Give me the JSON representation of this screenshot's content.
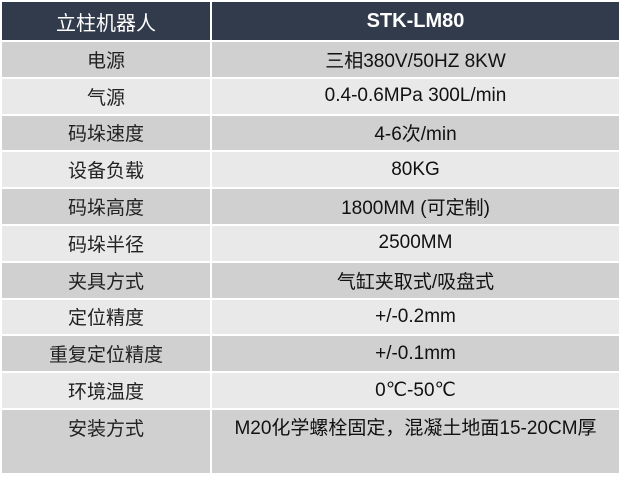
{
  "header": {
    "label": "立柱机器人",
    "value": "STK-LM80"
  },
  "rows": [
    {
      "label": "电源",
      "value": "三相380V/50HZ 8KW"
    },
    {
      "label": "气源",
      "value": "0.4-0.6MPa 300L/min"
    },
    {
      "label": "码垛速度",
      "value": "4-6次/min"
    },
    {
      "label": "设备负载",
      "value": "80KG"
    },
    {
      "label": "码垛高度",
      "value": "1800MM (可定制)"
    },
    {
      "label": "码垛半径",
      "value": "2500MM"
    },
    {
      "label": "夹具方式",
      "value": "气缸夹取式/吸盘式"
    },
    {
      "label": "定位精度",
      "value": "+/-0.2mm"
    },
    {
      "label": "重复定位精度",
      "value": "+/-0.1mm"
    },
    {
      "label": "环境温度",
      "value": "0℃-50℃"
    },
    {
      "label": "安装方式",
      "value": "M20化学螺栓固定，混凝土地面15-20CM厚"
    }
  ],
  "colors": {
    "header_bg": "#323b4c",
    "row_dark": "#d0d0d0",
    "row_light": "#e9e9e9"
  }
}
